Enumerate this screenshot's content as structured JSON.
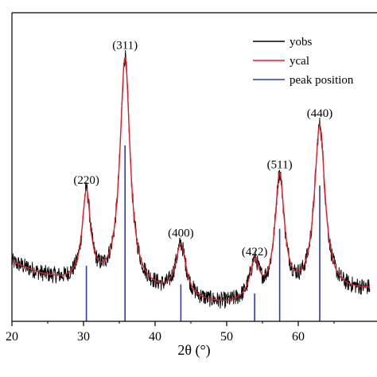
{
  "chart_data": {
    "type": "line",
    "title": "",
    "xlabel": "2θ (°)",
    "ylabel": "",
    "xlim": [
      20,
      70
    ],
    "ylim": [
      0,
      100
    ],
    "x_ticks": [
      20,
      30,
      40,
      50,
      60
    ],
    "y_ticks": [],
    "grid": false,
    "legend_position": "top-right",
    "series": [
      {
        "name": "yobs",
        "color": "#000000",
        "style": "noisy-line"
      },
      {
        "name": "ycal",
        "color": "#e0202a",
        "style": "line"
      },
      {
        "name": "peak position",
        "color": "#2b3bb5",
        "style": "stick"
      }
    ],
    "baseline": [
      {
        "x": 20,
        "y": 19
      },
      {
        "x": 24,
        "y": 15
      },
      {
        "x": 27,
        "y": 13
      },
      {
        "x": 30,
        "y": 12
      },
      {
        "x": 35,
        "y": 11
      },
      {
        "x": 40,
        "y": 9
      },
      {
        "x": 45,
        "y": 6
      },
      {
        "x": 50,
        "y": 5
      },
      {
        "x": 55,
        "y": 6
      },
      {
        "x": 60,
        "y": 8
      },
      {
        "x": 65,
        "y": 9
      },
      {
        "x": 70,
        "y": 10
      }
    ],
    "peaks": [
      {
        "hkl": "(220)",
        "x": 30.4,
        "height": 29,
        "width": 0.7,
        "stick": 18
      },
      {
        "hkl": "(311)",
        "x": 35.8,
        "height": 74,
        "width": 0.85,
        "stick": 57
      },
      {
        "hkl": "(400)",
        "x": 43.6,
        "height": 17,
        "width": 0.9,
        "stick": 12
      },
      {
        "hkl": "(422)",
        "x": 53.9,
        "height": 12,
        "width": 0.8,
        "stick": 9
      },
      {
        "hkl": "(511)",
        "x": 57.4,
        "height": 39,
        "width": 0.8,
        "stick": 30
      },
      {
        "hkl": "(440)",
        "x": 63.0,
        "height": 54,
        "width": 0.9,
        "stick": 44
      }
    ]
  }
}
